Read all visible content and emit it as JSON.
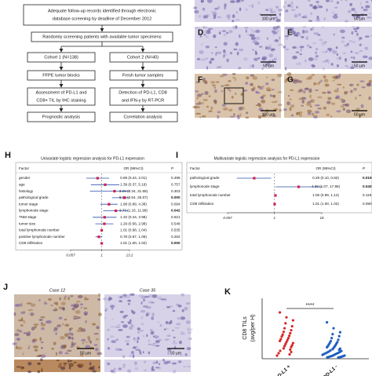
{
  "flowchart": {
    "top": [
      "Adequate follow-up records identified through electronic",
      "database screening by deadline of December 2012"
    ],
    "screen": "Randomly screening patients with available tumor specimens",
    "cohort1": "Cohort 1 (N=138)",
    "cohort2": "Cohort 2 (N=40)",
    "sample1": "FFPE tumor blocks",
    "sample2": "Fresh tumor samples",
    "method1": [
      "Assessment of PD-L1 and",
      "CD8+ TIL by IHC staining"
    ],
    "method2": [
      "Detection of PD-L1, CD8",
      "and IFN-γ by RT-PCR"
    ],
    "analysis1": "Prognostic analysis",
    "analysis2": "Correlation analysis"
  },
  "micrographs": [
    {
      "label": "",
      "scale": "100 μm"
    },
    {
      "label": "",
      "scale": "50 μm"
    },
    {
      "label": "D",
      "scale": "50 μm"
    },
    {
      "label": "E",
      "scale": "50 μm"
    },
    {
      "label": "F",
      "scale": "100 μm"
    },
    {
      "label": "G",
      "scale": "50 μm"
    }
  ],
  "forest": [
    {
      "label": "H",
      "title": "Univariate logistic regression analysis for PD-L1 expression",
      "header": [
        "Factor",
        "OR (95%CI)",
        "P"
      ],
      "rows": [
        [
          "gender",
          "0.69 (0.24, 2.01)",
          "0.498"
        ],
        [
          "age",
          "1.39 (0.37, 5.18)",
          "0.757"
        ],
        [
          "histology",
          "3.29 (0.34, 31.59)",
          "0.303"
        ],
        [
          "pathological grade",
          "8.38 (2.64, 26.57)",
          "0.000"
        ],
        [
          "tumor stage",
          "1.98 (0.89, 4.38)",
          "0.094"
        ],
        [
          "lymphonode stage",
          "3.73 (1.16, 11.99)",
          "0.042"
        ],
        [
          "TNM stage",
          "1.32 (0.44, 3.98)",
          "0.621"
        ],
        [
          "tumor size",
          "1.29 (0.56, 2.98)",
          "0.548"
        ],
        [
          "total lymphonode number",
          "1.01 (0.98, 1.04)",
          "0.535"
        ],
        [
          "positive lymphonode number",
          "0.78 (0.57, 1.06)",
          "0.262"
        ],
        [
          "CD8 infiltration",
          "1.01 (1.00, 1.02)",
          "0.000"
        ]
      ],
      "xlim": [
        0.057,
        13.2
      ],
      "xticks": [
        0.057,
        1,
        13.2
      ]
    },
    {
      "label": "I",
      "title": "Multivariate logistic regression analysis for PD-L1 expression",
      "header": [
        "Factor",
        "OR (95%CI)",
        "P"
      ],
      "rows": [
        [
          "pathological grade",
          "0.29 (0.10, 0.82)",
          "0.019"
        ],
        [
          "lymphonode stage",
          "4.38 (1.07, 17.96)",
          "0.040"
        ],
        [
          "total lymphonode number",
          "1.06 (0.99, 1.14)",
          "0.118"
        ],
        [
          "CD8 infiltration",
          "1.01 (1.00, 1.02)",
          "0.090"
        ]
      ],
      "xlim": [
        0.057,
        18
      ],
      "xticks": [
        0.057,
        1,
        18
      ]
    }
  ],
  "panel_j": {
    "label": "J",
    "cases": [
      "Case 12",
      "Case 35"
    ],
    "scale": "50 μm"
  },
  "panel_k": {
    "label": "K",
    "ylabel": [
      "CD8 TILs",
      "(avg/per H)"
    ],
    "significance": "****",
    "groups": [
      {
        "name": "PD-L1 +",
        "color": "#d62728",
        "values": [
          230,
          205,
          190,
          175,
          160,
          150,
          140,
          132,
          125,
          118,
          112,
          108,
          100,
          95,
          90,
          86,
          80,
          75,
          70,
          64,
          60,
          55,
          48,
          42,
          36,
          30,
          24,
          18,
          12
        ]
      },
      {
        "name": "PD-L1 -",
        "color": "#1f5fbf",
        "values": [
          180,
          150,
          130,
          120,
          110,
          100,
          92,
          85,
          80,
          76,
          72,
          68,
          64,
          60,
          57,
          54,
          50,
          47,
          44,
          41,
          38,
          35,
          32,
          30,
          28,
          26,
          24,
          22,
          20,
          18,
          16,
          14,
          12,
          10,
          9,
          8,
          6,
          5,
          4,
          3,
          2
        ]
      }
    ]
  }
}
